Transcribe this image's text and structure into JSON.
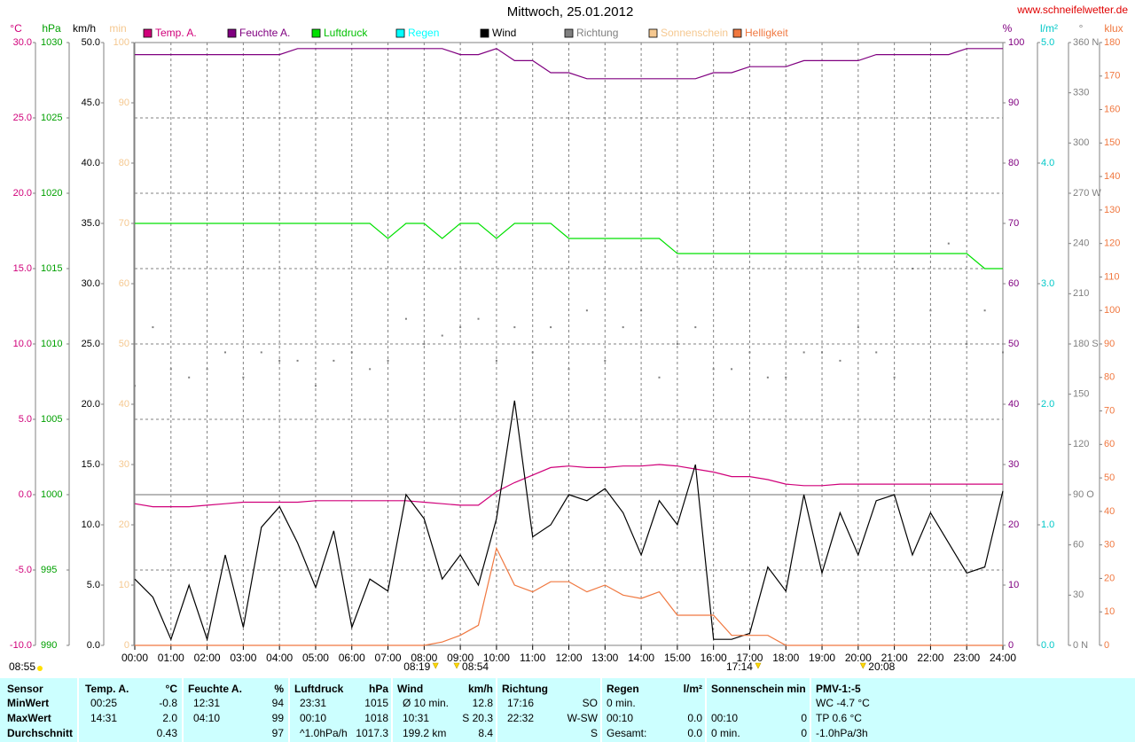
{
  "chart_data": {
    "type": "line",
    "title": "Mittwoch, 25.01.2012",
    "source": "www.schneifelwetter.de",
    "time": "08:55",
    "sun_events": [
      "08:19",
      "08:54",
      "17:14",
      "20:08"
    ],
    "grid": true,
    "reference_line": {
      "axis": "°C",
      "value": 0
    },
    "xlim": [
      "00:00",
      "24:00"
    ],
    "xticks": [
      "00:00",
      "01:00",
      "02:00",
      "03:00",
      "04:00",
      "05:00",
      "06:00",
      "07:00",
      "08:00",
      "09:00",
      "10:00",
      "11:00",
      "12:00",
      "13:00",
      "14:00",
      "15:00",
      "16:00",
      "17:00",
      "18:00",
      "19:00",
      "20:00",
      "21:00",
      "22:00",
      "23:00",
      "24:00"
    ],
    "x": [
      "00:00",
      "00:30",
      "01:00",
      "01:30",
      "02:00",
      "02:30",
      "03:00",
      "03:30",
      "04:00",
      "04:30",
      "05:00",
      "05:30",
      "06:00",
      "06:30",
      "07:00",
      "07:30",
      "08:00",
      "08:30",
      "09:00",
      "09:30",
      "10:00",
      "10:30",
      "11:00",
      "11:30",
      "12:00",
      "12:30",
      "13:00",
      "13:30",
      "14:00",
      "14:30",
      "15:00",
      "15:30",
      "16:00",
      "16:30",
      "17:00",
      "17:30",
      "18:00",
      "18:30",
      "19:00",
      "19:30",
      "20:00",
      "20:30",
      "21:00",
      "21:30",
      "22:00",
      "22:30",
      "23:00",
      "23:30",
      "24:00"
    ],
    "axes": [
      {
        "unit": "°C",
        "side": "left",
        "color": "#d0007a",
        "ylim": [
          -10,
          30
        ],
        "yticks": [
          {
            "value": -10,
            "label": "-10.0"
          },
          {
            "value": -5,
            "label": "-5.0"
          },
          {
            "value": 0,
            "label": "0.0"
          },
          {
            "value": 5,
            "label": "5.0"
          },
          {
            "value": 10,
            "label": "10.0"
          },
          {
            "value": 15,
            "label": "15.0"
          },
          {
            "value": 20,
            "label": "20.0"
          },
          {
            "value": 25,
            "label": "25.0"
          },
          {
            "value": 30,
            "label": "30.0"
          }
        ]
      },
      {
        "unit": "hPa",
        "side": "left",
        "color": "#00a000",
        "ylim": [
          990,
          1030
        ],
        "yticks": [
          990,
          995,
          1000,
          1005,
          1010,
          1015,
          1020,
          1025,
          1030
        ]
      },
      {
        "unit": "km/h",
        "side": "left",
        "color": "#000000",
        "ylim": [
          0,
          50
        ],
        "yticks": [
          {
            "value": 0,
            "label": "0.0"
          },
          {
            "value": 5,
            "label": "5.0"
          },
          {
            "value": 10,
            "label": "10.0"
          },
          {
            "value": 15,
            "label": "15.0"
          },
          {
            "value": 20,
            "label": "20.0"
          },
          {
            "value": 25,
            "label": "25.0"
          },
          {
            "value": 30,
            "label": "30.0"
          },
          {
            "value": 35,
            "label": "35.0"
          },
          {
            "value": 40,
            "label": "40.0"
          },
          {
            "value": 45,
            "label": "45.0"
          },
          {
            "value": 50,
            "label": "50.0"
          }
        ]
      },
      {
        "unit": "min",
        "side": "left",
        "color": "#f5c890",
        "ylim": [
          0,
          100
        ],
        "yticks": [
          0,
          10,
          20,
          30,
          40,
          50,
          60,
          70,
          80,
          90,
          100
        ]
      },
      {
        "unit": "%",
        "side": "right",
        "color": "#800080",
        "ylim": [
          0,
          100
        ],
        "yticks": [
          0,
          10,
          20,
          30,
          40,
          50,
          60,
          70,
          80,
          90,
          100
        ]
      },
      {
        "unit": "l/m²",
        "side": "right",
        "color": "#00c8c8",
        "ylim": [
          0,
          5
        ],
        "yticks": [
          {
            "value": 0,
            "label": "0.0"
          },
          {
            "value": 1,
            "label": "1.0"
          },
          {
            "value": 2,
            "label": "2.0"
          },
          {
            "value": 3,
            "label": "3.0"
          },
          {
            "value": 4,
            "label": "4.0"
          },
          {
            "value": 5,
            "label": "5.0"
          }
        ]
      },
      {
        "unit": "°",
        "side": "right",
        "color": "#808080",
        "ylim": [
          0,
          360
        ],
        "yticks": [
          {
            "value": 0,
            "label": "0 N"
          },
          30,
          60,
          {
            "value": 90,
            "label": "90 O"
          },
          120,
          150,
          {
            "value": 180,
            "label": "180 S"
          },
          210,
          240,
          {
            "value": 270,
            "label": "270 W"
          },
          300,
          330,
          {
            "value": 360,
            "label": "360 N"
          }
        ]
      },
      {
        "unit": "klux",
        "side": "right",
        "color": "#f07840",
        "ylim": [
          0,
          180
        ],
        "yticks": [
          0,
          10,
          20,
          30,
          40,
          50,
          60,
          70,
          80,
          90,
          100,
          110,
          120,
          130,
          140,
          150,
          160,
          170,
          180
        ]
      }
    ],
    "series": [
      {
        "name": "Temp. A.",
        "color": "#d0007a",
        "axis": "°C",
        "values": [
          -0.6,
          -0.8,
          -0.8,
          -0.8,
          -0.7,
          -0.6,
          -0.5,
          -0.5,
          -0.5,
          -0.5,
          -0.4,
          -0.4,
          -0.4,
          -0.4,
          -0.4,
          -0.4,
          -0.5,
          -0.6,
          -0.7,
          -0.7,
          0.2,
          0.8,
          1.3,
          1.8,
          1.9,
          1.8,
          1.8,
          1.9,
          1.9,
          2.0,
          1.9,
          1.7,
          1.5,
          1.2,
          1.2,
          1.0,
          0.7,
          0.6,
          0.6,
          0.7,
          0.7,
          0.7,
          0.7,
          0.7,
          0.7,
          0.7,
          0.7,
          0.7,
          0.7
        ]
      },
      {
        "name": "Feuchte A.",
        "color": "#800080",
        "axis": "%",
        "values": [
          98,
          98,
          98,
          98,
          98,
          98,
          98,
          98,
          98,
          99,
          99,
          99,
          99,
          99,
          99,
          99,
          99,
          99,
          98,
          98,
          99,
          97,
          97,
          95,
          95,
          94,
          94,
          94,
          94,
          94,
          94,
          94,
          95,
          95,
          96,
          96,
          96,
          97,
          97,
          97,
          97,
          98,
          98,
          98,
          98,
          98,
          99,
          99,
          99
        ]
      },
      {
        "name": "Luftdruck",
        "color": "#00e000",
        "axis": "hPa",
        "values": [
          1018,
          1018,
          1018,
          1018,
          1018,
          1018,
          1018,
          1018,
          1018,
          1018,
          1018,
          1018,
          1018,
          1018,
          1017,
          1018,
          1018,
          1017,
          1018,
          1018,
          1017,
          1018,
          1018,
          1018,
          1017,
          1017,
          1017,
          1017,
          1017,
          1017,
          1016,
          1016,
          1016,
          1016,
          1016,
          1016,
          1016,
          1016,
          1016,
          1016,
          1016,
          1016,
          1016,
          1016,
          1016,
          1016,
          1016,
          1015,
          1015
        ]
      },
      {
        "name": "Regen",
        "color": "#00ffff",
        "axis": "l/m²"
      },
      {
        "name": "Wind",
        "color": "#000000",
        "axis": "km/h",
        "values": [
          5.5,
          4.0,
          0.5,
          5.0,
          0.5,
          7.5,
          1.5,
          9.8,
          11.5,
          8.5,
          4.8,
          9.5,
          1.5,
          5.5,
          4.5,
          12.5,
          10.5,
          5.5,
          7.5,
          5.0,
          10.5,
          20.3,
          9.0,
          10.0,
          12.5,
          12.0,
          13.0,
          11.0,
          7.5,
          12.0,
          10.0,
          15.0,
          0.5,
          0.5,
          1.0,
          6.5,
          4.5,
          12.5,
          6.0,
          11.0,
          7.5,
          12.0,
          12.5,
          7.5,
          11.0,
          8.5,
          6.0,
          6.5,
          12.8
        ]
      },
      {
        "name": "Richtung",
        "color": "#808080",
        "axis": "°",
        "style": "dots",
        "values": [
          155,
          190,
          165,
          160,
          165,
          175,
          160,
          175,
          170,
          170,
          155,
          170,
          175,
          165,
          170,
          195,
          180,
          185,
          190,
          195,
          170,
          190,
          175,
          190,
          165,
          200,
          170,
          190,
          200,
          160,
          180,
          190,
          165,
          165,
          175,
          160,
          160,
          175,
          175,
          170,
          190,
          175,
          160,
          225,
          200,
          240,
          180,
          200,
          175
        ]
      },
      {
        "name": "Sonnenschein",
        "color": "#f5c890",
        "axis": "min"
      },
      {
        "name": "Helligkeit",
        "color": "#f07840",
        "axis": "klux",
        "values": [
          0,
          0,
          0,
          0,
          0,
          0,
          0,
          0,
          0,
          0,
          0,
          0,
          0,
          0,
          0,
          0,
          0,
          1,
          3,
          6,
          29,
          18,
          16,
          19,
          19,
          16,
          18,
          15,
          14,
          16,
          9,
          9,
          9,
          3,
          3,
          3,
          0,
          0,
          0,
          0,
          0,
          0,
          0,
          0,
          0,
          0,
          0,
          0,
          0
        ]
      }
    ]
  },
  "table": {
    "columns": [
      {
        "name": "Sensor"
      },
      {
        "name": "Temp. A.",
        "unit": "°C"
      },
      {
        "name": "Feuchte A.",
        "unit": "%"
      },
      {
        "name": "Luftdruck",
        "unit": "hPa"
      },
      {
        "name": "Wind",
        "unit": "km/h"
      },
      {
        "name": "Richtung"
      },
      {
        "name": "Regen",
        "unit": "l/m²"
      },
      {
        "name": "Sonnenschein min"
      },
      {
        "name": "PMV-1:-5"
      }
    ],
    "rows": [
      {
        "label": "MinWert",
        "cells": [
          {
            "left": "00:25",
            "right": "-0.8"
          },
          {
            "left": "12:31",
            "right": "94"
          },
          {
            "left": "23:31",
            "right": "1015"
          },
          {
            "left": "Ø 10 min.",
            "right": "12.8"
          },
          {
            "left": "17:16",
            "right": "SO"
          },
          {
            "left": "0 min."
          },
          {},
          {
            "left": "WC -4.7 °C"
          }
        ]
      },
      {
        "label": "MaxWert",
        "cells": [
          {
            "left": "14:31",
            "right": "2.0"
          },
          {
            "left": "04:10",
            "right": "99"
          },
          {
            "left": "00:10",
            "right": "1018"
          },
          {
            "left": "10:31",
            "right": "S 20.3"
          },
          {
            "left": "22:32",
            "right": "W-SW"
          },
          {
            "left": "00:10",
            "right": "0.0"
          },
          {
            "left": "00:10",
            "right": "0"
          },
          {
            "left": "TP 0.6 °C"
          }
        ]
      },
      {
        "label": "Durchschnitt",
        "cells": [
          {
            "right": "0.43"
          },
          {
            "right": "97"
          },
          {
            "left": "^1.0hPa/h",
            "right": "1017.3"
          },
          {
            "left": "199.2 km",
            "right": "8.4"
          },
          {
            "right": "S"
          },
          {
            "left": "Gesamt:",
            "right": "0.0"
          },
          {
            "left": "0 min.",
            "right": "0"
          },
          {
            "left": "-1.0hPa/3h"
          }
        ]
      }
    ]
  }
}
